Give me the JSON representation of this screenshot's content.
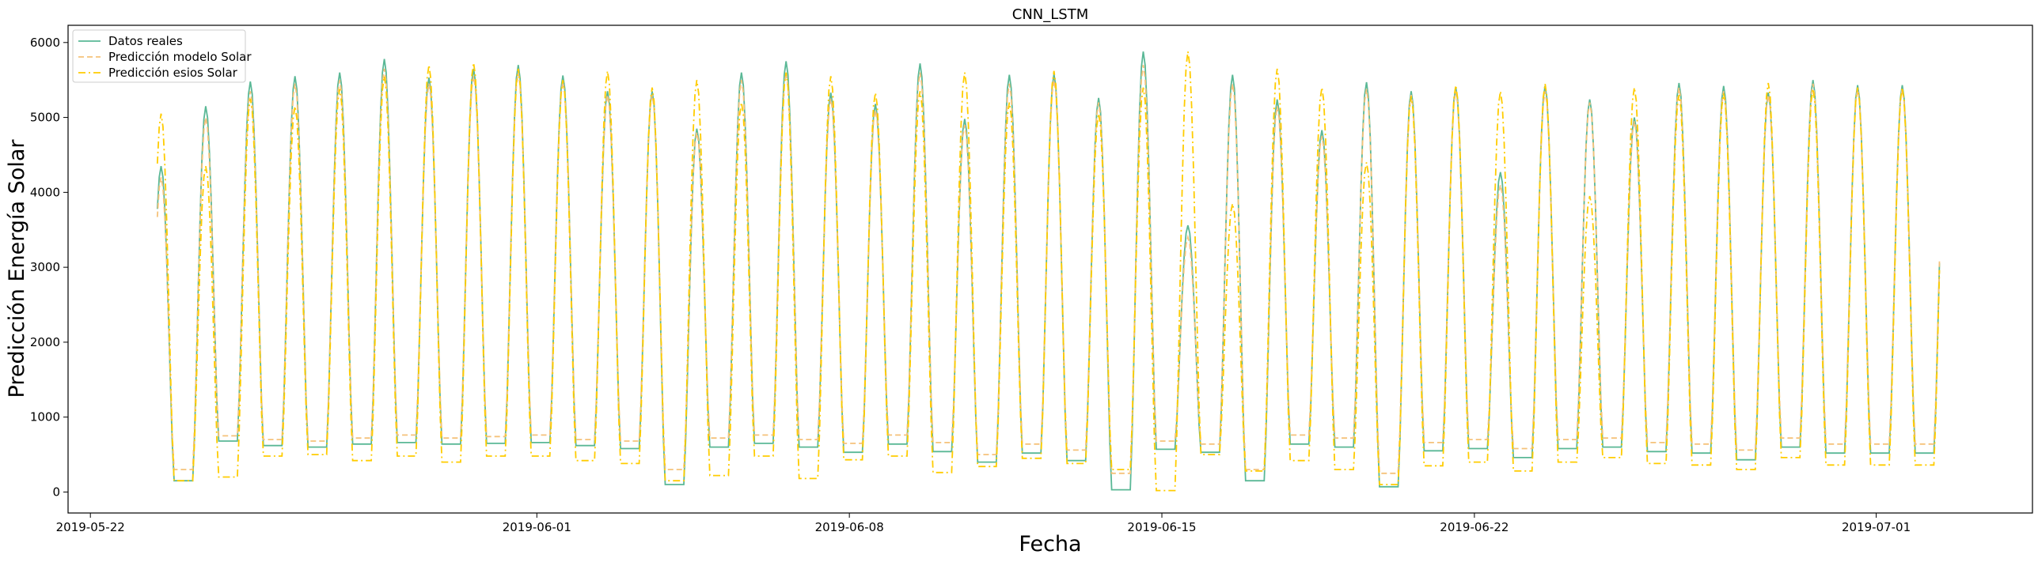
{
  "chart_data": {
    "type": "line",
    "title": "CNN_LSTM",
    "xlabel": "Fecha",
    "ylabel": "Predicción Energía Solar",
    "x_start": "2019-05-23T12:00",
    "x_end": "2019-07-02T10:00",
    "xlim": [
      "2019-05-21T12:00",
      "2019-07-04T12:00"
    ],
    "ylim": [
      -280,
      6230
    ],
    "x_ticks": [
      "2019-05-22",
      "2019-06-01",
      "2019-06-08",
      "2019-06-15",
      "2019-06-22",
      "2019-07-01"
    ],
    "y_ticks": [
      0,
      1000,
      2000,
      3000,
      4000,
      5000,
      6000
    ],
    "grid": false,
    "legend_position": "top-left",
    "series": [
      {
        "name": "Datos reales",
        "color": "#5ab896",
        "style": "solid",
        "daily_peaks": [
          4350,
          5150,
          5480,
          5550,
          5600,
          5780,
          5530,
          5650,
          5700,
          5560,
          5350,
          5350,
          4850,
          5600,
          5750,
          5330,
          5180,
          5720,
          4980,
          5570,
          5580,
          5260,
          5880,
          3560,
          5570,
          5240,
          4830,
          5470,
          5350,
          5400,
          4270,
          5420,
          5240,
          5000,
          5460,
          5420,
          5330,
          5500,
          5430
        ],
        "daily_minimums": [
          150,
          680,
          620,
          600,
          640,
          660,
          640,
          650,
          660,
          620,
          580,
          100,
          600,
          650,
          600,
          530,
          640,
          540,
          400,
          520,
          420,
          30,
          570,
          530,
          150,
          640,
          600,
          70,
          550,
          580,
          460,
          580,
          600,
          540,
          520,
          430,
          600,
          520
        ]
      },
      {
        "name": "Predicción modelo Solar",
        "color": "#f5c27a",
        "style": "dashed",
        "daily_peaks": [
          4200,
          5000,
          5350,
          5450,
          5500,
          5650,
          5450,
          5550,
          5600,
          5480,
          5300,
          5300,
          4800,
          5500,
          5600,
          5250,
          5100,
          5600,
          4900,
          5450,
          5500,
          5200,
          5700,
          3400,
          5450,
          5150,
          4750,
          5380,
          5300,
          5350,
          4100,
          5350,
          5200,
          4950,
          5400,
          5350,
          5300,
          5450,
          5380
        ],
        "daily_minimums": [
          300,
          750,
          700,
          680,
          720,
          760,
          720,
          740,
          760,
          700,
          680,
          300,
          720,
          760,
          700,
          650,
          760,
          660,
          500,
          640,
          560,
          250,
          680,
          640,
          300,
          760,
          720,
          250,
          660,
          700,
          580,
          700,
          720,
          660,
          640,
          560,
          720,
          640
        ]
      },
      {
        "name": "Predicción esios Solar",
        "color": "#ffcc00",
        "style": "dashdot",
        "daily_peaks": [
          5050,
          4350,
          5250,
          5150,
          5380,
          5550,
          5700,
          5730,
          5650,
          5500,
          5620,
          5400,
          5500,
          5200,
          5600,
          5550,
          5330,
          5350,
          5600,
          5200,
          5620,
          5050,
          5400,
          5880,
          3850,
          5650,
          5400,
          4400,
          5280,
          5430,
          5350,
          5450,
          3950,
          5400,
          5300,
          5320,
          5460,
          5380,
          5400
        ],
        "daily_minimums": [
          150,
          200,
          480,
          500,
          420,
          480,
          400,
          480,
          480,
          420,
          380,
          150,
          220,
          480,
          180,
          430,
          480,
          260,
          340,
          450,
          380,
          300,
          20,
          500,
          280,
          420,
          300,
          100,
          350,
          400,
          280,
          400,
          460,
          380,
          360,
          300,
          460,
          360
        ]
      }
    ]
  }
}
